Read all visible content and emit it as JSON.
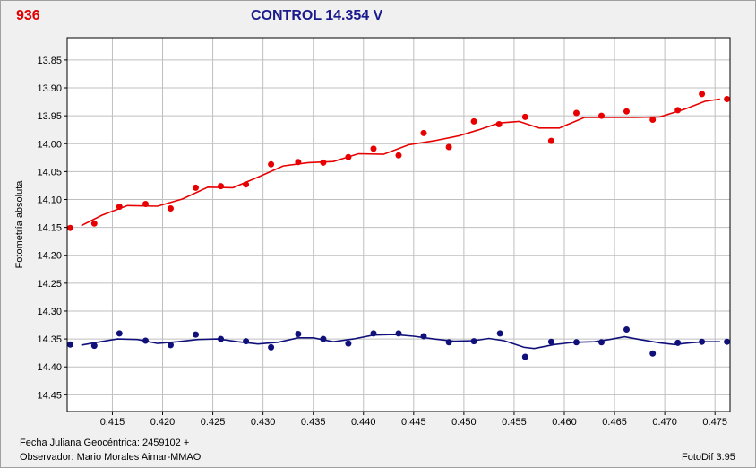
{
  "header": {
    "star_id": "936",
    "title": "CONTROL 14.354 V"
  },
  "footer": {
    "julian_date": "Fecha Juliana Geocéntrica: 2459102 +",
    "observer": "Observador: Mario Morales Aimar-MMAO",
    "software": "FotoDif 3.95"
  },
  "colors": {
    "red_series": "#e80000",
    "blue_series": "#10107a",
    "grid": "#bfbfbf",
    "plot_bg": "#ffffff"
  },
  "chart_data": {
    "type": "scatter",
    "title": "CONTROL 14.354 V",
    "xlabel": "",
    "ylabel": "Fotometría absoluta",
    "xlim": [
      0.4105,
      0.4765
    ],
    "ylim": [
      13.81,
      14.48
    ],
    "y_inverted": true,
    "grid": true,
    "x_ticks": [
      "0.415",
      "0.420",
      "0.425",
      "0.430",
      "0.435",
      "0.440",
      "0.445",
      "0.450",
      "0.455",
      "0.460",
      "0.465",
      "0.470",
      "0.475"
    ],
    "y_ticks": [
      "13.85",
      "13.90",
      "13.95",
      "14.00",
      "14.05",
      "14.10",
      "14.15",
      "14.20",
      "14.25",
      "14.30",
      "14.35",
      "14.40",
      "14.45"
    ],
    "series": [
      {
        "color": "#e80000",
        "points": [
          [
            0.4108,
            14.151
          ],
          [
            0.4132,
            14.143
          ],
          [
            0.4157,
            14.113
          ],
          [
            0.4183,
            14.108
          ],
          [
            0.4208,
            14.116
          ],
          [
            0.4233,
            14.079
          ],
          [
            0.4258,
            14.076
          ],
          [
            0.4283,
            14.073
          ],
          [
            0.4308,
            14.037
          ],
          [
            0.4335,
            14.033
          ],
          [
            0.436,
            14.034
          ],
          [
            0.4385,
            14.024
          ],
          [
            0.441,
            14.009
          ],
          [
            0.4435,
            14.021
          ],
          [
            0.446,
            13.981
          ],
          [
            0.4485,
            14.006
          ],
          [
            0.451,
            13.96
          ],
          [
            0.4535,
            13.965
          ],
          [
            0.4561,
            13.952
          ],
          [
            0.4587,
            13.995
          ],
          [
            0.4612,
            13.945
          ],
          [
            0.4637,
            13.95
          ],
          [
            0.4662,
            13.942
          ],
          [
            0.4688,
            13.957
          ],
          [
            0.4713,
            13.94
          ],
          [
            0.4737,
            13.911
          ],
          [
            0.4762,
            13.92
          ]
        ],
        "trend": [
          [
            0.4119,
            14.147
          ],
          [
            0.414,
            14.128
          ],
          [
            0.4165,
            14.111
          ],
          [
            0.4195,
            14.112
          ],
          [
            0.422,
            14.099
          ],
          [
            0.4245,
            14.078
          ],
          [
            0.427,
            14.079
          ],
          [
            0.4295,
            14.06
          ],
          [
            0.432,
            14.04
          ],
          [
            0.4345,
            14.034
          ],
          [
            0.437,
            14.032
          ],
          [
            0.4395,
            14.018
          ],
          [
            0.442,
            14.019
          ],
          [
            0.4445,
            14.002
          ],
          [
            0.447,
            13.995
          ],
          [
            0.4495,
            13.986
          ],
          [
            0.4515,
            13.975
          ],
          [
            0.4535,
            13.963
          ],
          [
            0.4555,
            13.96
          ],
          [
            0.4575,
            13.972
          ],
          [
            0.4595,
            13.972
          ],
          [
            0.462,
            13.953
          ],
          [
            0.4645,
            13.953
          ],
          [
            0.467,
            13.953
          ],
          [
            0.4695,
            13.952
          ],
          [
            0.472,
            13.938
          ],
          [
            0.474,
            13.924
          ],
          [
            0.4755,
            13.92
          ]
        ]
      },
      {
        "color": "#10107a",
        "points": [
          [
            0.4108,
            14.36
          ],
          [
            0.4132,
            14.362
          ],
          [
            0.4157,
            14.34
          ],
          [
            0.4183,
            14.353
          ],
          [
            0.4208,
            14.361
          ],
          [
            0.4233,
            14.342
          ],
          [
            0.4258,
            14.35
          ],
          [
            0.4283,
            14.354
          ],
          [
            0.4308,
            14.365
          ],
          [
            0.4335,
            14.341
          ],
          [
            0.436,
            14.35
          ],
          [
            0.4385,
            14.358
          ],
          [
            0.441,
            14.34
          ],
          [
            0.4435,
            14.34
          ],
          [
            0.446,
            14.345
          ],
          [
            0.4485,
            14.356
          ],
          [
            0.451,
            14.354
          ],
          [
            0.4536,
            14.34
          ],
          [
            0.4561,
            14.382
          ],
          [
            0.4587,
            14.355
          ],
          [
            0.4612,
            14.356
          ],
          [
            0.4637,
            14.356
          ],
          [
            0.4662,
            14.333
          ],
          [
            0.4688,
            14.376
          ],
          [
            0.4713,
            14.357
          ],
          [
            0.4737,
            14.355
          ],
          [
            0.4762,
            14.355
          ]
        ],
        "trend": [
          [
            0.4119,
            14.361
          ],
          [
            0.4135,
            14.356
          ],
          [
            0.4155,
            14.35
          ],
          [
            0.4175,
            14.351
          ],
          [
            0.4195,
            14.358
          ],
          [
            0.4215,
            14.355
          ],
          [
            0.4235,
            14.351
          ],
          [
            0.4255,
            14.35
          ],
          [
            0.4275,
            14.355
          ],
          [
            0.4295,
            14.359
          ],
          [
            0.4315,
            14.356
          ],
          [
            0.4335,
            14.348
          ],
          [
            0.435,
            14.348
          ],
          [
            0.437,
            14.355
          ],
          [
            0.439,
            14.35
          ],
          [
            0.441,
            14.343
          ],
          [
            0.443,
            14.342
          ],
          [
            0.445,
            14.345
          ],
          [
            0.447,
            14.35
          ],
          [
            0.449,
            14.354
          ],
          [
            0.451,
            14.353
          ],
          [
            0.4525,
            14.349
          ],
          [
            0.454,
            14.353
          ],
          [
            0.456,
            14.365
          ],
          [
            0.457,
            14.367
          ],
          [
            0.459,
            14.36
          ],
          [
            0.461,
            14.356
          ],
          [
            0.463,
            14.355
          ],
          [
            0.4645,
            14.351
          ],
          [
            0.466,
            14.346
          ],
          [
            0.4675,
            14.351
          ],
          [
            0.4695,
            14.357
          ],
          [
            0.471,
            14.36
          ],
          [
            0.4725,
            14.357
          ],
          [
            0.474,
            14.355
          ],
          [
            0.4755,
            14.355
          ]
        ]
      }
    ]
  }
}
